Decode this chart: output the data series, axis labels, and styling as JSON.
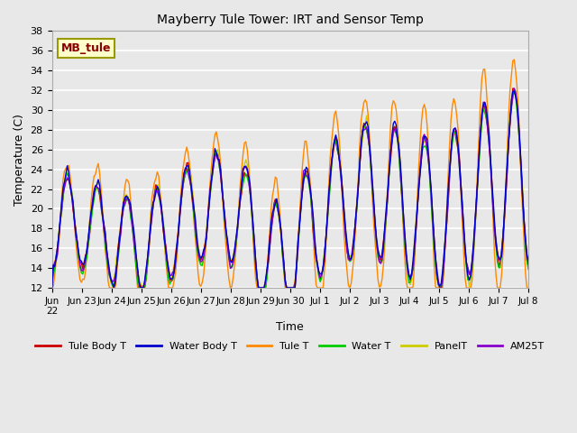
{
  "title": "Mayberry Tule Tower: IRT and Sensor Temp",
  "xlabel": "Time",
  "ylabel": "Temperature (C)",
  "ylim": [
    12,
    38
  ],
  "yticks": [
    12,
    14,
    16,
    18,
    20,
    22,
    24,
    26,
    28,
    30,
    32,
    34,
    36,
    38
  ],
  "bg_color": "#e8e8e8",
  "annotation_text": "MB_tule",
  "annotation_color": "#8b0000",
  "annotation_bg": "#ffffcc",
  "annotation_edge": "#999900",
  "series_colors": {
    "Tule Body T": "#cc0000",
    "Water Body T": "#0000cc",
    "Tule T": "#ff8800",
    "Water T": "#00cc00",
    "PanelT": "#cccc00",
    "AM25T": "#8800cc"
  },
  "legend_labels": [
    "Tule Body T",
    "Water Body T",
    "Tule T",
    "Water T",
    "PanelT",
    "AM25T"
  ],
  "xtick_positions": [
    0,
    1,
    2,
    3,
    4,
    5,
    6,
    7,
    8,
    9,
    10,
    11,
    12,
    13,
    14,
    15,
    16
  ],
  "xtick_labels": [
    "Jun\n22",
    "Jun 23",
    "Jun 24",
    "Jun 25",
    "Jun 26",
    "Jun 27",
    "Jun 28",
    "Jun 29",
    "Jun 30",
    "Jul 1",
    "Jul 2",
    "Jul 3",
    "Jul 4",
    "Jul 5",
    "Jul 6",
    "Jul 7",
    "Jul 8"
  ],
  "figsize": [
    6.4,
    4.8
  ],
  "dpi": 100
}
